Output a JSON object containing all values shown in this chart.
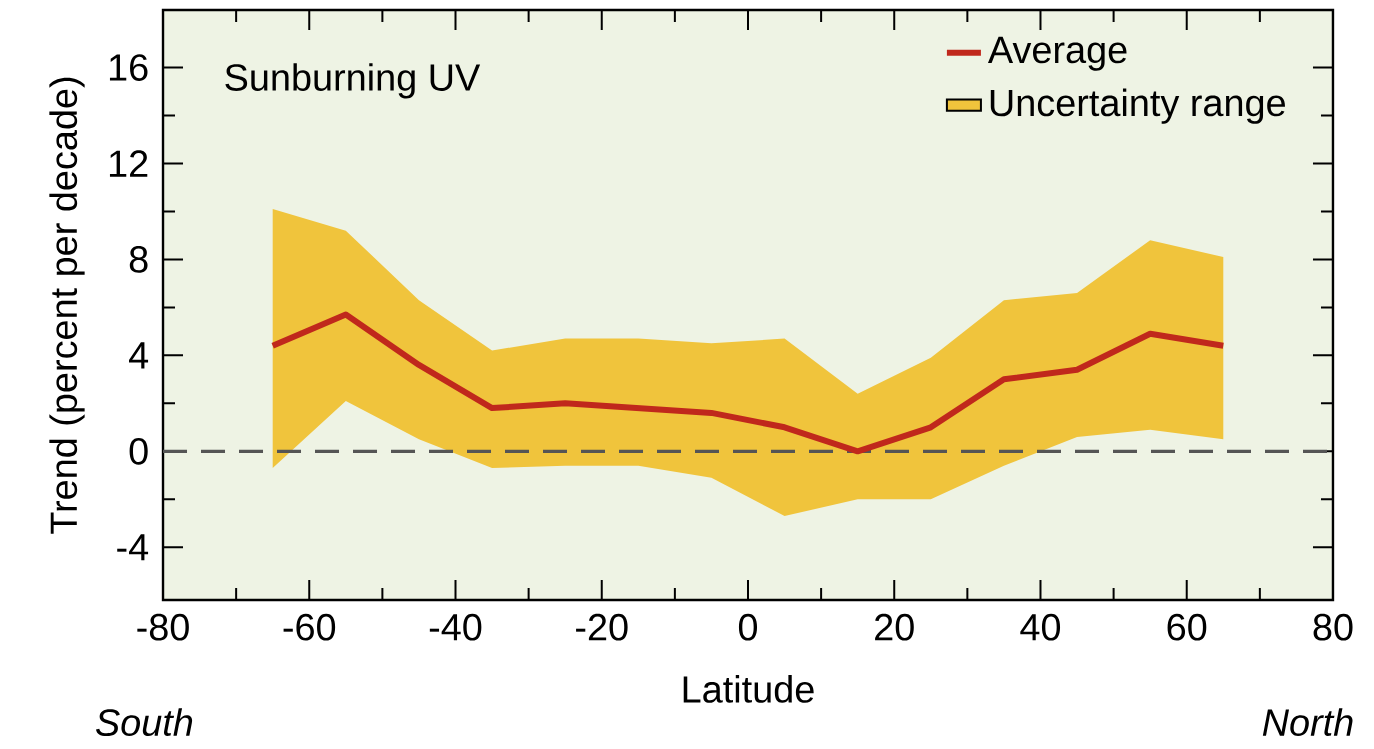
{
  "chart_data": {
    "type": "line",
    "xlabel": "Latitude",
    "ylabel": "Trend (percent per decade)",
    "annotations": [
      "Sunburning UV",
      "*South*",
      "*North*"
    ],
    "x": [
      -65,
      -55,
      -45,
      -35,
      -25,
      -15,
      -5,
      5,
      15,
      25,
      35,
      45,
      55,
      65
    ],
    "series": [
      {
        "name": "Average",
        "color": "#c0281c",
        "values": [
          4.4,
          5.7,
          3.6,
          1.8,
          2.0,
          1.8,
          1.6,
          1.0,
          0.0,
          1.0,
          3.0,
          3.4,
          4.9,
          4.4
        ],
        "lower": [
          -0.7,
          2.1,
          0.5,
          -0.7,
          -0.6,
          -0.6,
          -1.1,
          -2.7,
          -2.0,
          -2.0,
          -0.6,
          0.6,
          0.9,
          0.5
        ],
        "upper": [
          10.1,
          9.2,
          6.3,
          4.2,
          4.7,
          4.7,
          4.5,
          4.7,
          2.4,
          3.9,
          6.3,
          6.6,
          8.8,
          8.1
        ]
      },
      {
        "name": "Uncertainty range",
        "type": "area",
        "color": "#f0c43c",
        "values": [
          null,
          null,
          null,
          null,
          null,
          null,
          null,
          null,
          null,
          null,
          null,
          null,
          null,
          null
        ]
      }
    ],
    "xlim": [
      -80,
      80
    ],
    "ylim": [
      -6.2,
      18.4
    ],
    "xticks": [
      -80,
      -60,
      -40,
      -20,
      0,
      20,
      40,
      60,
      80
    ],
    "yticks": [
      -4,
      0,
      4,
      8,
      12,
      16
    ],
    "ref_lines": [
      {
        "axis": "y",
        "value": 0,
        "color": "#555555",
        "line_style": "dashed"
      }
    ],
    "legend": "top right",
    "marker": "none",
    "grid": false
  }
}
